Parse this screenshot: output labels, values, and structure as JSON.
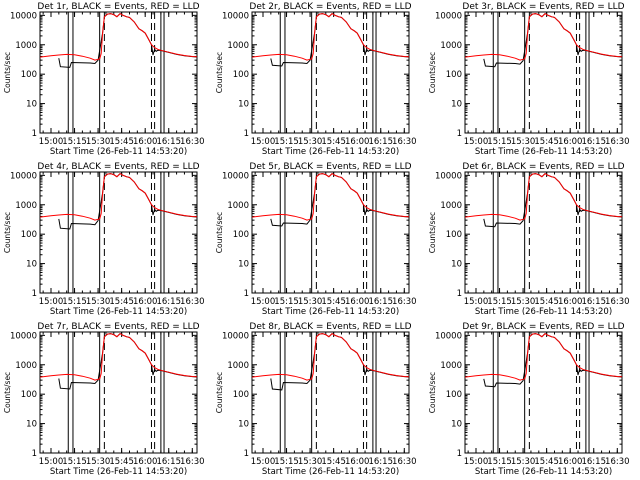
{
  "figure": {
    "xlabel": "Start Time (26-Feb-11 14:53:20)",
    "ylabel": "Counts/sec"
  },
  "chart_data": {
    "type": "line",
    "xlabel": "Start Time (26-Feb-11 14:53:20)",
    "ylabel": "Counts/sec",
    "x_ticks": [
      "15:00",
      "15:15",
      "15:30",
      "15:45",
      "16:00",
      "16:15",
      "16:30"
    ],
    "y_ticks": [
      "1",
      "10",
      "100",
      "1000",
      "10000"
    ],
    "xlim": [
      "14:53",
      "16:33"
    ],
    "ylim": [
      1,
      13000
    ],
    "y_scale": "log",
    "grid": false,
    "colors": {
      "events": "#000000",
      "lld": "#ff0000"
    },
    "vertical_lines": {
      "solid": [
        "15:11",
        "15:14",
        "15:31",
        "16:10",
        "16:12"
      ],
      "dashed": [
        "15:34",
        "16:04",
        "16:06"
      ]
    },
    "shared_series": {
      "lld_red": {
        "x": [
          "14:53",
          "15:00",
          "15:05",
          "15:10",
          "15:15",
          "15:20",
          "15:25",
          "15:28",
          "15:30",
          "15:31",
          "15:32",
          "15:33",
          "15:34",
          "15:36",
          "15:38",
          "15:40",
          "15:42",
          "15:44",
          "15:46",
          "15:48",
          "15:50",
          "15:53",
          "15:56",
          "15:58",
          "16:00",
          "16:02",
          "16:04",
          "16:06",
          "16:08",
          "16:10",
          "16:15",
          "16:20",
          "16:25",
          "16:30",
          "16:33"
        ],
        "y": [
          380,
          420,
          450,
          470,
          460,
          410,
          350,
          300,
          320,
          330,
          500,
          3000,
          9000,
          11000,
          11500,
          10500,
          9000,
          11500,
          10000,
          9000,
          8500,
          6000,
          3500,
          3000,
          2500,
          1600,
          1000,
          800,
          700,
          650,
          560,
          480,
          430,
          400,
          390
        ]
      },
      "events_black_tail": {
        "x": [
          "15:33",
          "15:34",
          "15:36",
          "15:38",
          "15:40",
          "15:42",
          "15:44",
          "15:46",
          "15:48",
          "15:50",
          "15:53",
          "15:56",
          "15:58",
          "16:00",
          "16:02",
          "16:04",
          "16:05",
          "16:06",
          "16:07",
          "16:08",
          "16:10",
          "16:15",
          "16:20",
          "16:25",
          "16:30",
          "16:33"
        ],
        "y": [
          2800,
          9000,
          11000,
          11500,
          10500,
          9000,
          11500,
          10000,
          9000,
          8500,
          6000,
          3500,
          3000,
          2500,
          1600,
          1000,
          450,
          700,
          600,
          650,
          640,
          550,
          470,
          420,
          395,
          385
        ]
      }
    },
    "panels": [
      {
        "title": "Det 1r, BLACK = Events, RED = LLD",
        "events_pre": {
          "x": [
            "15:05",
            "15:06",
            "15:12",
            "15:13",
            "15:25",
            "15:28",
            "15:30"
          ],
          "y": [
            350,
            180,
            170,
            250,
            240,
            230,
            300
          ]
        }
      },
      {
        "title": "Det 2r, BLACK = Events, RED = LLD",
        "events_pre": {
          "x": [
            "15:05",
            "15:06",
            "15:12",
            "15:13",
            "15:25",
            "15:28",
            "15:30"
          ],
          "y": [
            340,
            200,
            190,
            250,
            240,
            230,
            300
          ]
        }
      },
      {
        "title": "Det 3r, BLACK = Events, RED = LLD",
        "events_pre": {
          "x": [
            "15:05",
            "15:06",
            "15:12",
            "15:13",
            "15:25",
            "15:28",
            "15:30"
          ],
          "y": [
            330,
            190,
            180,
            240,
            230,
            220,
            290
          ]
        }
      },
      {
        "title": "Det 4r, BLACK = Events, RED = LLD",
        "events_pre": {
          "x": [
            "15:05",
            "15:06",
            "15:12",
            "15:13",
            "15:25",
            "15:28",
            "15:30"
          ],
          "y": [
            330,
            160,
            150,
            230,
            220,
            210,
            290
          ]
        }
      },
      {
        "title": "Det 5r, BLACK = Events, RED = LLD",
        "events_pre": {
          "x": [
            "15:05",
            "15:06",
            "15:12",
            "15:13",
            "15:25",
            "15:28",
            "15:30"
          ],
          "y": [
            330,
            200,
            190,
            240,
            230,
            220,
            300
          ]
        }
      },
      {
        "title": "Det 6r, BLACK = Events, RED = LLD",
        "events_pre": {
          "x": [
            "15:05",
            "15:06",
            "15:12",
            "15:13",
            "15:25",
            "15:28",
            "15:30"
          ],
          "y": [
            330,
            190,
            180,
            240,
            230,
            220,
            290
          ]
        }
      },
      {
        "title": "Det 7r, BLACK = Events, RED = LLD",
        "events_pre": {
          "x": [
            "15:05",
            "15:06",
            "15:12",
            "15:13",
            "15:25",
            "15:28",
            "15:30"
          ],
          "y": [
            340,
            160,
            150,
            250,
            240,
            230,
            300
          ]
        }
      },
      {
        "title": "Det 8r, BLACK = Events, RED = LLD",
        "events_pre": {
          "x": [
            "15:05",
            "15:06",
            "15:12",
            "15:13",
            "15:25",
            "15:28",
            "15:30"
          ],
          "y": [
            340,
            150,
            140,
            250,
            240,
            230,
            300
          ]
        }
      },
      {
        "title": "Det 9r, BLACK = Events, RED = LLD",
        "events_pre": {
          "x": [
            "15:05",
            "15:06",
            "15:12",
            "15:13",
            "15:25",
            "15:28",
            "15:30"
          ],
          "y": [
            330,
            190,
            180,
            240,
            230,
            220,
            290
          ]
        }
      }
    ]
  }
}
